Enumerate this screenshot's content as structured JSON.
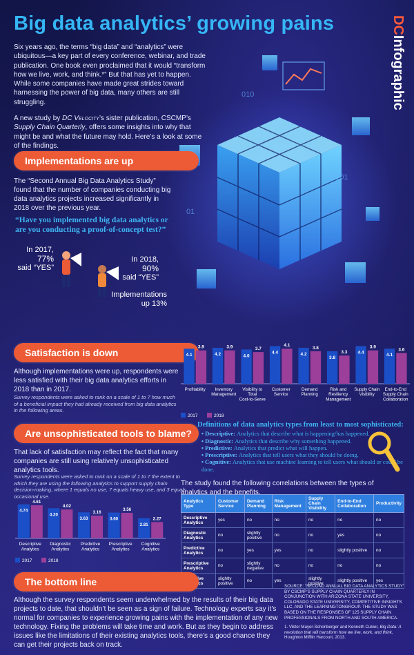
{
  "title": "Big data analytics’ growing pains",
  "brand": {
    "dc": "DC",
    "word": "Infographic"
  },
  "intro": {
    "p1": "Six years ago, the terms “big data” and “analytics” were ubiquitous—a key part of every conference, webinar, and trade publication. One book even proclaimed that it would “transform how we live, work, and think.*” But that has yet to happen. While some companies have made great strides toward harnessing the power of big data, many others are still struggling.",
    "p2_a": "A new study by ",
    "p2_b": "DC Velocity",
    "p2_c": "’s sister publication, CSCMP’s ",
    "p2_d": "Supply Chain Quarterly",
    "p2_e": ", offers some insights into why that might be and what the future may hold. Here’s a look at some of the findings."
  },
  "sections": {
    "implementations": {
      "heading": "Implementations are up",
      "text": "The “Second Annual Big Data Analytics Study” found that the number of companies conducting big data analytics projects increased significantly in 2018 over the previous year.",
      "quote": "“Have you implemented big data analytics or are you conducting a proof-of-concept test?”",
      "stat2017_a": "In 2017,",
      "stat2017_b": "77%",
      "stat2017_c": "said “YES”",
      "stat2018_a": "In 2018,",
      "stat2018_b": "90%",
      "stat2018_c": "said “YES”",
      "increase_a": "Implementations",
      "increase_b": "up 13%"
    },
    "satisfaction": {
      "heading": "Satisfaction is down",
      "text": "Although implementations were up, respondents were less satisfied with their big data analytics efforts in 2018 than in 2017.",
      "note": "Survey respondents were asked to rank on a scale of 1 to 7 how much of a beneficial impact they had already received from big data analytics in the following areas."
    },
    "tools": {
      "heading": "Are unsophisticated tools to blame?",
      "text": "That lack of satisfaction may reflect the fact that many companies are still using relatively unsophisticated analytics tools.",
      "note": "Survey respondents were asked to rank on a scale of 1 to 7 the extent to which they are using the following analytics to support supply chain decision-making, where 1 equals no use, 7 equals heavy use, and 3 equals occasional use."
    },
    "bottom": {
      "heading": "The bottom line",
      "text": "Although the survey respondents seem underwhelmed by the results of their big data projects to date, that shouldn’t be seen as a sign of failure. Technology experts say it’s normal for companies to experience growing pains with the implementation of any new technology. Fixing the problems will take time and work. But as they begin to address issues like the limitations of their existing analytics tools, there’s a good chance they can get their projects back on track."
    }
  },
  "definitions": {
    "heading": "Definitions of data analytics types from least to most sophisticated:",
    "items": [
      {
        "term": "Descriptive:",
        "desc": "Analytics that describe what is happening/has happened."
      },
      {
        "term": "Diagnostic:",
        "desc": "Analytics that describe why something happened."
      },
      {
        "term": "Predictive:",
        "desc": "Analytics that predict what will happen."
      },
      {
        "term": "Prescriptive:",
        "desc": "Analytics that tell users what they should be doing."
      },
      {
        "term": "Cognitive:",
        "desc": "Analytics that use machine learning to tell users what should or could be done."
      }
    ]
  },
  "correlation": {
    "intro": "The study found the following correlations between the types of analytics and the benefits.",
    "headers": [
      "Analytics Type",
      "Customer Service",
      "Demand Planning",
      "Risk Management",
      "Supply Chain Visibility",
      "End-to-End Collaboration",
      "Productivity"
    ],
    "rows": [
      [
        "Descriptive Analytics",
        "yes",
        "no",
        "no",
        "no",
        "no",
        "no"
      ],
      [
        "Diagnostic Analytics",
        "no",
        "slightly positive",
        "no",
        "no",
        "yes",
        "no"
      ],
      [
        "Predictive Analytics",
        "no",
        "yes",
        "yes",
        "no",
        "slightly positive",
        "no"
      ],
      [
        "Prescriptive Analytics",
        "no",
        "slightly negative",
        "no",
        "no",
        "no",
        "no"
      ],
      [
        "Cognitive Analytics",
        "slightly positive",
        "no",
        "yes",
        "slightly positive",
        "slightly positive",
        "yes"
      ]
    ]
  },
  "source": {
    "text": "SOURCE: “SECOND ANNUAL BIG DATA ANALYTICS STUDY” BY CSCMP’S SUPPLY CHAIN QUARTERLY IN CONJUNCTION WITH ARIZONA STATE UNIVERSITY, COLORADO STATE UNIVERSITY, COMPETITIVE INSIGHTS LLC, AND THE LEARNINGTONGROUP. THE STUDY WAS BASED ON THE RESPONSES OF 125 SUPPLY CHAIN PROFESSIONALS FROM NORTH AND SOUTH AMERICA.",
    "footnote_a": "1. Viktor Mayer-Schonberger and Kenneth Cukier, ",
    "footnote_b": "Big Data: A revolution that will transform how we live, work, and think,",
    "footnote_c": " Houghton Mifflin Harcourt, 2013."
  },
  "colors": {
    "y2017": "#1b4fc8",
    "y2018": "#9b3f9a",
    "accent": "#ec5b36",
    "title": "#35b6f5"
  },
  "chart_data": [
    {
      "type": "bar",
      "categories": [
        "Profitability",
        "Inventory Management",
        "Visibility to Total Cost-to-Serve",
        "Customer Service",
        "Demand Planning",
        "Risk and Resiliency Management",
        "Supply Chain Visibility",
        "End-to-End Supply Chain Collaboration"
      ],
      "series": [
        {
          "name": "2017",
          "values": [
            4.1,
            4.2,
            4.0,
            4.4,
            4.2,
            3.8,
            4.4,
            4.1
          ]
        },
        {
          "name": "2018",
          "values": [
            3.9,
            3.9,
            3.7,
            4.1,
            3.8,
            3.3,
            3.9,
            3.6
          ]
        }
      ],
      "ylim": [
        0,
        5
      ],
      "legend": "bottom-left"
    },
    {
      "type": "bar",
      "categories": [
        "Descriptive Analytics",
        "Diagnostic Analytics",
        "Predictive Analytics",
        "Prescriptive Analytics",
        "Cognitive Analytics"
      ],
      "series": [
        {
          "name": "2017",
          "values": [
            4.74,
            4.2,
            3.63,
            3.6,
            2.81
          ]
        },
        {
          "name": "2018",
          "values": [
            4.61,
            4.02,
            3.16,
            3.56,
            2.27
          ]
        }
      ],
      "ylim": [
        0,
        5
      ],
      "legend": "bottom-left"
    }
  ]
}
